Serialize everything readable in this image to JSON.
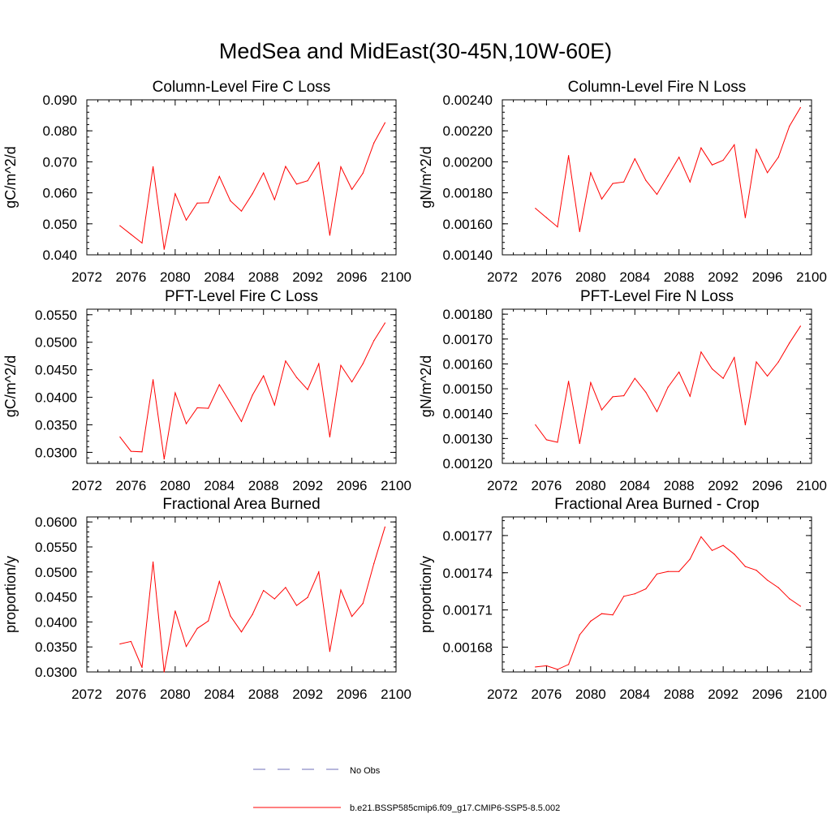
{
  "title": "MedSea and MidEast(30-45N,10W-60E)",
  "legend": {
    "obs": {
      "label": "No Obs",
      "color": "#6f6fb8",
      "dash": true
    },
    "model": {
      "label": "b.e21.BSSP585cmip6.f09_g17.CMIP6-SSP5-8.5.002",
      "color": "#ff0000"
    }
  },
  "chart_data": [
    {
      "type": "line",
      "title": "Column-Level Fire C Loss",
      "ylabel": "gC/m^2/d",
      "xlim": [
        2072,
        2100
      ],
      "xticks": [
        "2072",
        "2076",
        "2080",
        "2084",
        "2088",
        "2092",
        "2096",
        "2100"
      ],
      "ylim": [
        0.04,
        0.09
      ],
      "yticks": [
        "0.040",
        "0.050",
        "0.060",
        "0.070",
        "0.080",
        "0.090"
      ],
      "series": [
        {
          "color": "#ff0000",
          "x": [
            2075,
            2076,
            2077,
            2078,
            2079,
            2080,
            2081,
            2082,
            2083,
            2084,
            2085,
            2086,
            2087,
            2088,
            2089,
            2090,
            2091,
            2092,
            2093,
            2094,
            2095,
            2096,
            2097,
            2098,
            2099
          ],
          "values": [
            0.0494,
            0.0466,
            0.0438,
            0.0684,
            0.0418,
            0.0597,
            0.0512,
            0.0567,
            0.0568,
            0.0653,
            0.0574,
            0.0541,
            0.0597,
            0.0664,
            0.0578,
            0.0685,
            0.0628,
            0.0639,
            0.0698,
            0.0463,
            0.0684,
            0.0611,
            0.0663,
            0.0761,
            0.0826
          ]
        }
      ]
    },
    {
      "type": "line",
      "title": "Column-Level Fire N Loss",
      "ylabel": "gN/m^2/d",
      "xlim": [
        2072,
        2100
      ],
      "xticks": [
        "2072",
        "2076",
        "2080",
        "2084",
        "2088",
        "2092",
        "2096",
        "2100"
      ],
      "ylim": [
        0.0014,
        0.0024
      ],
      "yticks": [
        "0.00140",
        "0.00160",
        "0.00180",
        "0.00200",
        "0.00220",
        "0.00240"
      ],
      "series": [
        {
          "color": "#ff0000",
          "x": [
            2075,
            2076,
            2077,
            2078,
            2079,
            2080,
            2081,
            2082,
            2083,
            2084,
            2085,
            2086,
            2087,
            2088,
            2089,
            2090,
            2091,
            2092,
            2093,
            2094,
            2095,
            2096,
            2097,
            2098,
            2099
          ],
          "values": [
            0.0017,
            0.00164,
            0.00158,
            0.00204,
            0.00155,
            0.00193,
            0.00176,
            0.00186,
            0.00187,
            0.00202,
            0.00188,
            0.00179,
            0.00191,
            0.00203,
            0.00187,
            0.00209,
            0.00198,
            0.00201,
            0.00211,
            0.00164,
            0.00208,
            0.00193,
            0.00203,
            0.00223,
            0.00235
          ]
        }
      ]
    },
    {
      "type": "line",
      "title": "PFT-Level Fire C Loss",
      "ylabel": "gC/m^2/d",
      "xlim": [
        2072,
        2100
      ],
      "xticks": [
        "2072",
        "2076",
        "2080",
        "2084",
        "2088",
        "2092",
        "2096",
        "2100"
      ],
      "ylim": [
        0.028,
        0.056
      ],
      "yticks": [
        "0.0300",
        "0.0350",
        "0.0400",
        "0.0450",
        "0.0500",
        "0.0550"
      ],
      "series": [
        {
          "color": "#ff0000",
          "x": [
            2075,
            2076,
            2077,
            2078,
            2079,
            2080,
            2081,
            2082,
            2083,
            2084,
            2085,
            2086,
            2087,
            2088,
            2089,
            2090,
            2091,
            2092,
            2093,
            2094,
            2095,
            2096,
            2097,
            2098,
            2099
          ],
          "values": [
            0.0328,
            0.0302,
            0.0301,
            0.0432,
            0.0288,
            0.0408,
            0.0352,
            0.0381,
            0.038,
            0.0423,
            0.039,
            0.0356,
            0.0404,
            0.0439,
            0.0386,
            0.0466,
            0.0436,
            0.0414,
            0.0461,
            0.0328,
            0.0458,
            0.0428,
            0.0461,
            0.0503,
            0.0535
          ]
        }
      ]
    },
    {
      "type": "line",
      "title": "PFT-Level Fire N Loss",
      "ylabel": "gN/m^2/d",
      "xlim": [
        2072,
        2100
      ],
      "xticks": [
        "2072",
        "2076",
        "2080",
        "2084",
        "2088",
        "2092",
        "2096",
        "2100"
      ],
      "ylim": [
        0.0012,
        0.00182
      ],
      "yticks": [
        "0.00120",
        "0.00130",
        "0.00140",
        "0.00150",
        "0.00160",
        "0.00170",
        "0.00180"
      ],
      "series": [
        {
          "color": "#ff0000",
          "x": [
            2075,
            2076,
            2077,
            2078,
            2079,
            2080,
            2081,
            2082,
            2083,
            2084,
            2085,
            2086,
            2087,
            2088,
            2089,
            2090,
            2091,
            2092,
            2093,
            2094,
            2095,
            2096,
            2097,
            2098,
            2099
          ],
          "values": [
            0.001355,
            0.001295,
            0.001285,
            0.00153,
            0.00128,
            0.001525,
            0.001415,
            0.001468,
            0.001472,
            0.001542,
            0.001486,
            0.001408,
            0.001506,
            0.001567,
            0.00147,
            0.001648,
            0.00158,
            0.001542,
            0.001626,
            0.001355,
            0.001608,
            0.001551,
            0.001608,
            0.001684,
            0.001752
          ]
        }
      ]
    },
    {
      "type": "line",
      "title": "Fractional Area Burned",
      "ylabel": "proportion/y",
      "xlim": [
        2072,
        2100
      ],
      "xticks": [
        "2072",
        "2076",
        "2080",
        "2084",
        "2088",
        "2092",
        "2096",
        "2100"
      ],
      "ylim": [
        0.03,
        0.061
      ],
      "yticks": [
        "0.0300",
        "0.0350",
        "0.0400",
        "0.0450",
        "0.0500",
        "0.0550",
        "0.0600"
      ],
      "series": [
        {
          "color": "#ff0000",
          "x": [
            2075,
            2076,
            2077,
            2078,
            2079,
            2080,
            2081,
            2082,
            2083,
            2084,
            2085,
            2086,
            2087,
            2088,
            2089,
            2090,
            2091,
            2092,
            2093,
            2094,
            2095,
            2096,
            2097,
            2098,
            2099
          ],
          "values": [
            0.0356,
            0.0361,
            0.0309,
            0.052,
            0.03,
            0.0422,
            0.0351,
            0.0387,
            0.0402,
            0.0481,
            0.0412,
            0.038,
            0.0415,
            0.0463,
            0.0446,
            0.0469,
            0.0433,
            0.0449,
            0.05,
            0.0341,
            0.0464,
            0.0411,
            0.0437,
            0.0517,
            0.059
          ]
        }
      ]
    },
    {
      "type": "line",
      "title": "Fractional Area Burned - Crop",
      "ylabel": "proportion/y",
      "xlim": [
        2072,
        2100
      ],
      "xticks": [
        "2072",
        "2076",
        "2080",
        "2084",
        "2088",
        "2092",
        "2096",
        "2100"
      ],
      "ylim": [
        0.00166,
        0.001785
      ],
      "yticks": [
        "0.00168",
        "0.00171",
        "0.00174",
        "0.00177"
      ],
      "series": [
        {
          "color": "#ff0000",
          "x": [
            2075,
            2076,
            2077,
            2078,
            2079,
            2080,
            2081,
            2082,
            2083,
            2084,
            2085,
            2086,
            2087,
            2088,
            2089,
            2090,
            2091,
            2092,
            2093,
            2094,
            2095,
            2096,
            2097,
            2098,
            2099
          ],
          "values": [
            0.001664,
            0.001665,
            0.001662,
            0.001666,
            0.00169,
            0.001701,
            0.001707,
            0.001706,
            0.001721,
            0.001723,
            0.001727,
            0.001739,
            0.001741,
            0.001741,
            0.001751,
            0.001769,
            0.001758,
            0.001762,
            0.001755,
            0.001745,
            0.001742,
            0.001734,
            0.001728,
            0.001719,
            0.001713
          ]
        }
      ]
    }
  ]
}
